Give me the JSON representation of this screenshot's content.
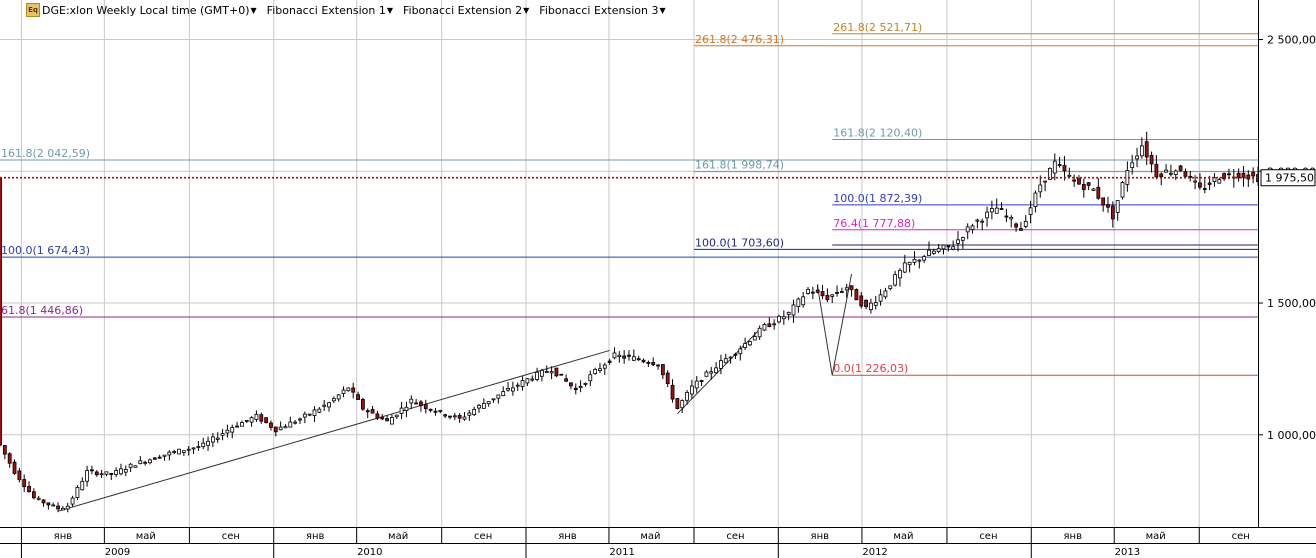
{
  "toolbar": {
    "symbol_label": "DGE:xlon Weekly Local time (GMT+0)",
    "icon_text": "Eq",
    "studies": [
      "Fibonacci Extension 1",
      "Fibonacci Extension 2",
      "Fibonacci Extension 3"
    ]
  },
  "colors": {
    "up_candle": "#ffffff",
    "down_candle": "#a01010",
    "candle_outline": "#000000",
    "current_price_line": "#cc0000",
    "grid": "#c8c8c8"
  },
  "chart_data": {
    "type": "candlestick",
    "symbol": "DGE:xlon",
    "interval": "Weekly",
    "x_range": [
      "2008-12-01",
      "2013-11-25"
    ],
    "ylim": [
      650,
      2650
    ],
    "price_ticks": [
      "1 000,00",
      "1 500,00",
      "2 000,00",
      "2 500,00"
    ],
    "price_tick_values": [
      1000,
      1500,
      2000,
      2500
    ],
    "month_ticks": [
      {
        "label": "янв",
        "date": "2009-01-01"
      },
      {
        "label": "май",
        "date": "2009-05-01"
      },
      {
        "label": "сен",
        "date": "2009-09-01"
      },
      {
        "label": "янв",
        "date": "2010-01-01"
      },
      {
        "label": "май",
        "date": "2010-05-01"
      },
      {
        "label": "сен",
        "date": "2010-09-01"
      },
      {
        "label": "янв",
        "date": "2011-01-01"
      },
      {
        "label": "май",
        "date": "2011-05-01"
      },
      {
        "label": "сен",
        "date": "2011-09-01"
      },
      {
        "label": "янв",
        "date": "2012-01-01"
      },
      {
        "label": "май",
        "date": "2012-05-01"
      },
      {
        "label": "сен",
        "date": "2012-09-01"
      },
      {
        "label": "янв",
        "date": "2013-01-01"
      },
      {
        "label": "май",
        "date": "2013-05-01"
      },
      {
        "label": "сен",
        "date": "2013-09-01"
      }
    ],
    "year_ticks": [
      {
        "label": "2009",
        "date": "2009-05-20"
      },
      {
        "label": "2010",
        "date": "2010-05-20"
      },
      {
        "label": "2011",
        "date": "2011-05-20"
      },
      {
        "label": "2012",
        "date": "2012-05-20"
      },
      {
        "label": "2013",
        "date": "2013-05-20"
      }
    ],
    "current_price": 1975.5,
    "current_price_label": "1 975,50",
    "price_path": [
      [
        "2008-12-01",
        960
      ],
      [
        "2008-12-22",
        860
      ],
      [
        "2009-01-19",
        760
      ],
      [
        "2009-02-23",
        720
      ],
      [
        "2009-03-09",
        730
      ],
      [
        "2009-04-06",
        860
      ],
      [
        "2009-05-11",
        850
      ],
      [
        "2009-06-15",
        890
      ],
      [
        "2009-08-03",
        930
      ],
      [
        "2009-09-21",
        960
      ],
      [
        "2009-11-02",
        1030
      ],
      [
        "2009-12-07",
        1070
      ],
      [
        "2010-01-04",
        1020
      ],
      [
        "2010-02-08",
        1060
      ],
      [
        "2010-03-22",
        1120
      ],
      [
        "2010-04-19",
        1180
      ],
      [
        "2010-05-10",
        1100
      ],
      [
        "2010-06-14",
        1050
      ],
      [
        "2010-07-19",
        1130
      ],
      [
        "2010-08-23",
        1090
      ],
      [
        "2010-09-27",
        1060
      ],
      [
        "2010-11-01",
        1120
      ],
      [
        "2010-12-06",
        1170
      ],
      [
        "2011-01-10",
        1220
      ],
      [
        "2011-02-07",
        1250
      ],
      [
        "2011-03-14",
        1170
      ],
      [
        "2011-04-11",
        1240
      ],
      [
        "2011-05-09",
        1300
      ],
      [
        "2011-06-06",
        1290
      ],
      [
        "2011-07-11",
        1270
      ],
      [
        "2011-08-08",
        1100
      ],
      [
        "2011-08-29",
        1180
      ],
      [
        "2011-10-03",
        1260
      ],
      [
        "2011-11-07",
        1330
      ],
      [
        "2011-12-12",
        1410
      ],
      [
        "2012-01-16",
        1460
      ],
      [
        "2012-02-13",
        1550
      ],
      [
        "2012-03-12",
        1520
      ],
      [
        "2012-04-09",
        1560
      ],
      [
        "2012-05-07",
        1480
      ],
      [
        "2012-05-28",
        1530
      ],
      [
        "2012-07-02",
        1640
      ],
      [
        "2012-08-06",
        1690
      ],
      [
        "2012-09-10",
        1720
      ],
      [
        "2012-10-08",
        1800
      ],
      [
        "2012-11-12",
        1860
      ],
      [
        "2012-12-17",
        1780
      ],
      [
        "2013-01-14",
        1950
      ],
      [
        "2013-02-04",
        2030
      ],
      [
        "2013-03-04",
        1960
      ],
      [
        "2013-04-01",
        1930
      ],
      [
        "2013-04-29",
        1830
      ],
      [
        "2013-05-20",
        2010
      ],
      [
        "2013-06-10",
        2100
      ],
      [
        "2013-07-01",
        1990
      ],
      [
        "2013-08-05",
        2010
      ],
      [
        "2013-09-02",
        1930
      ],
      [
        "2013-09-30",
        1980
      ],
      [
        "2013-10-28",
        1990
      ],
      [
        "2013-11-25",
        1975
      ]
    ],
    "fibonacci_levels": [
      {
        "group": "ext1",
        "label": "161.8(2 042,59)",
        "value": 2042.59,
        "color": "#6f9aa8",
        "start": "2008-12-01",
        "label_pos": "start"
      },
      {
        "group": "ext1",
        "label": "100.0(1 674,43)",
        "value": 1674.43,
        "color": "#2a3fa8",
        "start": "2008-12-01",
        "label_pos": "start"
      },
      {
        "group": "ext1",
        "label": "61.8(1 446,86)",
        "value": 1446.86,
        "color": "#8a2a8a",
        "start": "2008-12-01",
        "label_pos": "start"
      },
      {
        "group": "ext2",
        "label": "261.8(2 476,31)",
        "value": 2476.31,
        "color": "#d2762a",
        "start": "2011-09-01",
        "label_pos": "start"
      },
      {
        "group": "ext2",
        "label": "161.8(1 998,74)",
        "value": 1998.74,
        "color": "#6f9aa8",
        "start": "2011-09-01",
        "label_pos": "start"
      },
      {
        "group": "ext2",
        "label": "100.0(1 703,60)",
        "value": 1703.6,
        "color": "#1c2890",
        "start": "2011-09-01",
        "label_pos": "start"
      },
      {
        "group": "ext3",
        "label": "261.8(2 521,71)",
        "value": 2521.71,
        "color": "#c08430",
        "start": "2012-03-19",
        "label_pos": "start"
      },
      {
        "group": "ext3",
        "label": "161.8(2 120,40)",
        "value": 2120.4,
        "color": "#6f9aa8",
        "start": "2012-03-19",
        "label_pos": "start"
      },
      {
        "group": "ext3",
        "label": "100.0(1 872,39)",
        "value": 1872.39,
        "color": "#2a3fc8",
        "start": "2012-03-19",
        "label_pos": "start"
      },
      {
        "group": "ext3",
        "label": "76.4(1 777,88)",
        "value": 1777.88,
        "color": "#e020d0",
        "start": "2012-03-19",
        "label_pos": "start"
      },
      {
        "group": "ext3",
        "label": "",
        "value": 1720.0,
        "color": "#3a1c6a",
        "start": "2012-03-19",
        "label_pos": "none"
      },
      {
        "group": "ext3",
        "label": "0.0(1 226,03)",
        "value": 1226.03,
        "color": "#e04040",
        "start": "2012-03-19",
        "label_pos": "start"
      }
    ],
    "trend_lines": [
      {
        "from": [
          "2009-02-23",
          710
        ],
        "to": [
          "2011-05-02",
          1320
        ]
      },
      {
        "from": [
          "2011-08-08",
          1080
        ],
        "to": [
          "2011-12-05",
          1400
        ]
      },
      {
        "from": [
          "2012-02-27",
          1560
        ],
        "to": [
          "2012-03-19",
          1226
        ]
      },
      {
        "from": [
          "2012-03-19",
          1226
        ],
        "to": [
          "2012-04-16",
          1610
        ]
      }
    ]
  }
}
